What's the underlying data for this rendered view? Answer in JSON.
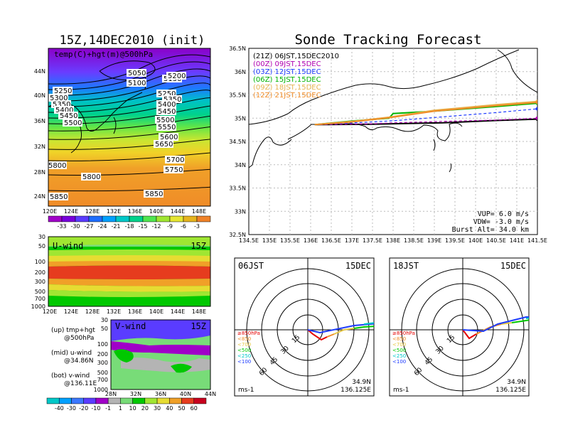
{
  "init": {
    "title": "15Z,14DEC2010 (init)"
  },
  "tracker": {
    "title": "Sonde Tracking Forecast",
    "lat_ticks": [
      "36.5N",
      "36N",
      "35.5N",
      "35N",
      "34.5N",
      "34N",
      "33.5N",
      "33N",
      "32.5N"
    ],
    "lon_ticks": [
      "134.5E",
      "135E",
      "135.5E",
      "136E",
      "136.5E",
      "137E",
      "137.5E",
      "138E",
      "138.5E",
      "139E",
      "139.5E",
      "140E",
      "140.5E",
      "141E",
      "141.5E"
    ],
    "legend": [
      {
        "text": "(21Z) 06JST,15DEC2010",
        "color": "#000000"
      },
      {
        "text": "(00Z) 09JST,15DEC",
        "color": "#b000b0"
      },
      {
        "text": "(03Z) 12JST,15DEC",
        "color": "#1e3cff"
      },
      {
        "text": "(06Z) 15JST,15DEC",
        "color": "#00b400"
      },
      {
        "text": "(09Z) 18JST,15DEC",
        "color": "#e6b450"
      },
      {
        "text": "(12Z) 21JST,15DEC",
        "color": "#f08c28"
      }
    ],
    "params": {
      "vup": "VUP= 6.0 m/s",
      "vdw": "VDW= -3.0 m/s",
      "burst": "Burst Alt= 34.0 km"
    }
  },
  "temp_map": {
    "label": "temp(C)+hgt(m)@500hPa",
    "lat_ticks": [
      "44N",
      "40N",
      "36N",
      "32N",
      "28N",
      "24N"
    ],
    "lon_ticks": [
      "120E",
      "124E",
      "128E",
      "132E",
      "136E",
      "140E",
      "144E",
      "148E"
    ],
    "contour_labels": [
      "5050",
      "5100",
      "5150",
      "5200",
      "5250",
      "5300",
      "5350",
      "5400",
      "5450",
      "5500",
      "5550",
      "5600",
      "5650",
      "5700",
      "5750",
      "5800",
      "5850"
    ],
    "colorbar_ticks": [
      "-33",
      "-30",
      "-27",
      "-24",
      "-21",
      "-18",
      "-15",
      "-12",
      "-9",
      "-6",
      "-3"
    ],
    "colorbar_colors": [
      "#a000c8",
      "#7800dc",
      "#5a3cff",
      "#1e6eff",
      "#00a0ff",
      "#00c8c8",
      "#00d28c",
      "#50e650",
      "#a0e632",
      "#e6e632",
      "#e6b41e",
      "#f08228"
    ]
  },
  "u_panel": {
    "label": "U-wind",
    "time": "15Z",
    "p_ticks": [
      "30",
      "50",
      "100",
      "200",
      "300",
      "500",
      "700",
      "1000"
    ],
    "lon_ticks": [
      "120E",
      "124E",
      "128E",
      "132E",
      "136E",
      "140E",
      "144E",
      "148E"
    ]
  },
  "v_panel": {
    "label": "V-wind",
    "time": "15Z",
    "p_ticks": [
      "30",
      "50",
      "100",
      "200",
      "300",
      "500",
      "700",
      "1000"
    ],
    "lat_ticks": [
      "28N",
      "32N",
      "36N",
      "40N",
      "44N"
    ]
  },
  "panel_notes": [
    {
      "a": "(up) tmp+hgt",
      "b": "@500hPa"
    },
    {
      "a": "(mid) u-wind",
      "b": "@34.86N"
    },
    {
      "a": "(bot) v-wind",
      "b": "@136.11E"
    }
  ],
  "wind_colorbar": {
    "ticks": [
      "-40",
      "-30",
      "-20",
      "-10",
      "-1",
      "1",
      "10",
      "20",
      "30",
      "40",
      "50",
      "60"
    ],
    "colors": [
      "#00c8c8",
      "#00a0ff",
      "#3c78ff",
      "#5a3cff",
      "#a000c8",
      "#b4b4b4",
      "#78dc78",
      "#00c800",
      "#a0e632",
      "#e6dc32",
      "#f0a028",
      "#e63c1e",
      "#c8001e"
    ]
  },
  "hodographs": [
    {
      "time": "06JST",
      "date": "15DEC",
      "lat": "34.9N",
      "lon": "136.125E",
      "unit": "ms-1"
    },
    {
      "time": "18JST",
      "date": "15DEC",
      "lat": "34.9N",
      "lon": "136.125E",
      "unit": "ms-1"
    }
  ],
  "hodo_rings": [
    "15",
    "30",
    "45",
    "60"
  ],
  "hodo_legend": [
    {
      "text": "≥850hPa",
      "color": "#e60000"
    },
    {
      "text": "<850",
      "color": "#f08c28"
    },
    {
      "text": "<700",
      "color": "#e6c846"
    },
    {
      "text": "<500",
      "color": "#00c800"
    },
    {
      "text": "<250",
      "color": "#00c8c8"
    },
    {
      "text": "<100",
      "color": "#1e3cff"
    }
  ],
  "chart_data": {
    "type": "line",
    "title": "Sonde Tracking Forecast",
    "xlabel": "",
    "ylabel": "",
    "xlim": [
      134.5,
      141.5
    ],
    "ylim": [
      32.5,
      36.5
    ],
    "series": [
      {
        "name": "(21Z) 06JST,15DEC2010",
        "color": "#000000",
        "points": [
          [
            136.1,
            34.86
          ],
          [
            137.5,
            34.87
          ],
          [
            138.0,
            34.88
          ],
          [
            139.2,
            34.9
          ],
          [
            140.5,
            34.95
          ],
          [
            141.5,
            34.98
          ]
        ]
      },
      {
        "name": "(00Z) 09JST,15DEC",
        "color": "#b000b0",
        "points": [
          [
            136.1,
            34.86
          ],
          [
            137.5,
            34.88
          ],
          [
            138.0,
            34.9
          ],
          [
            139.2,
            34.93
          ],
          [
            140.5,
            34.96
          ],
          [
            141.5,
            35.0
          ]
        ]
      },
      {
        "name": "(03Z) 12JST,15DEC",
        "color": "#1e3cff",
        "points": [
          [
            136.1,
            34.86
          ],
          [
            137.5,
            34.92
          ],
          [
            138.1,
            34.95
          ],
          [
            139.5,
            35.05
          ],
          [
            140.5,
            35.12
          ],
          [
            141.5,
            35.2
          ]
        ]
      },
      {
        "name": "(06Z) 15JST,15DEC",
        "color": "#00b400",
        "points": [
          [
            136.1,
            34.86
          ],
          [
            137.0,
            34.94
          ],
          [
            137.9,
            35.0
          ],
          [
            138.0,
            35.1
          ],
          [
            139.0,
            35.15
          ],
          [
            140.5,
            35.25
          ],
          [
            141.5,
            35.32
          ]
        ]
      },
      {
        "name": "(09Z) 18JST,15DEC",
        "color": "#e6b450",
        "points": [
          [
            136.1,
            34.86
          ],
          [
            137.0,
            34.93
          ],
          [
            137.9,
            35.02
          ],
          [
            139.0,
            35.17
          ],
          [
            140.5,
            35.29
          ],
          [
            141.5,
            35.36
          ]
        ]
      },
      {
        "name": "(12Z) 21JST,15DEC",
        "color": "#f08c28",
        "points": [
          [
            136.1,
            34.86
          ],
          [
            137.0,
            34.92
          ],
          [
            137.9,
            35.01
          ],
          [
            139.0,
            35.15
          ],
          [
            140.5,
            35.27
          ],
          [
            141.5,
            35.34
          ]
        ]
      }
    ]
  }
}
